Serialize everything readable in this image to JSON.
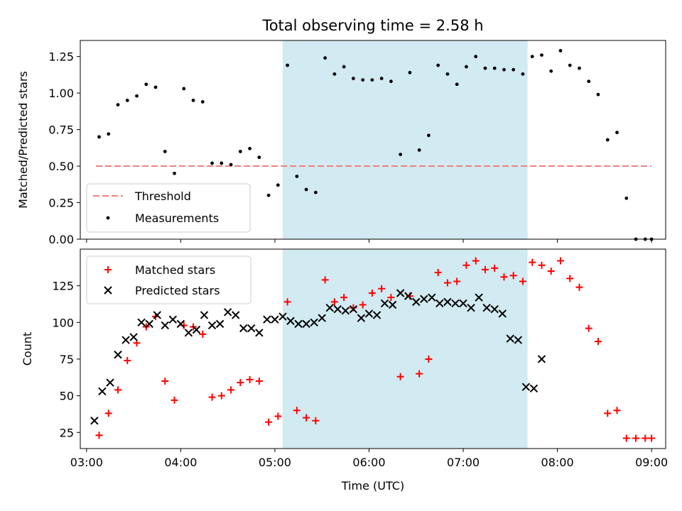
{
  "title": "Total observing time = 2.58 h",
  "xlabel": "Time (UTC)",
  "shaded_interval": {
    "start": "05:05",
    "end": "07:41",
    "color": "#add8e6"
  },
  "colors": {
    "threshold": "#f08080",
    "measurements": "#000000",
    "matched": "#ff0000",
    "predicted": "#000000"
  },
  "chart_data": [
    {
      "type": "scatter",
      "ylabel": "Matched/Predicted stars",
      "xlim": [
        "02:56",
        "09:09"
      ],
      "ylim": [
        0,
        1.36
      ],
      "grid": false,
      "legend_position": "lower-left",
      "x_ticks": [
        "03:00",
        "04:00",
        "05:00",
        "06:00",
        "07:00",
        "08:00",
        "09:00"
      ],
      "show_x_tick_labels": false,
      "y_ticks": [
        0.0,
        0.25,
        0.5,
        0.75,
        1.0,
        1.25
      ],
      "y_tick_labels": [
        "0.00",
        "0.25",
        "0.50",
        "0.75",
        "1.00",
        "1.25"
      ],
      "threshold": {
        "name": "Threshold",
        "value": 0.5,
        "x_start": "03:06",
        "x_end": "09:00"
      },
      "series": [
        {
          "name": "Measurements",
          "x": [
            "03:08",
            "03:14",
            "03:20",
            "03:26",
            "03:32",
            "03:38",
            "03:44",
            "03:50",
            "03:56",
            "04:02",
            "04:08",
            "04:14",
            "04:20",
            "04:26",
            "04:32",
            "04:38",
            "04:44",
            "04:50",
            "04:56",
            "05:02",
            "05:08",
            "05:14",
            "05:20",
            "05:26",
            "05:32",
            "05:38",
            "05:44",
            "05:50",
            "05:56",
            "06:02",
            "06:08",
            "06:14",
            "06:20",
            "06:26",
            "06:32",
            "06:38",
            "06:44",
            "06:50",
            "06:56",
            "07:02",
            "07:08",
            "07:14",
            "07:20",
            "07:26",
            "07:32",
            "07:38",
            "07:44",
            "07:50",
            "07:56",
            "08:02",
            "08:08",
            "08:14",
            "08:20",
            "08:26",
            "08:32",
            "08:38",
            "08:44",
            "08:50",
            "08:56",
            "09:00"
          ],
          "y": [
            0.7,
            0.72,
            0.92,
            0.95,
            0.98,
            1.06,
            1.04,
            0.6,
            0.45,
            1.03,
            0.95,
            0.94,
            0.52,
            0.52,
            0.51,
            0.6,
            0.62,
            0.56,
            0.3,
            0.37,
            1.19,
            0.43,
            0.34,
            0.32,
            1.24,
            1.13,
            1.18,
            1.1,
            1.09,
            1.09,
            1.1,
            1.08,
            0.58,
            1.14,
            0.61,
            0.71,
            1.19,
            1.13,
            1.06,
            1.18,
            1.25,
            1.17,
            1.17,
            1.16,
            1.16,
            1.13,
            1.25,
            1.26,
            1.15,
            1.29,
            1.19,
            1.17,
            1.08,
            0.99,
            0.68,
            0.73,
            0.28,
            0.0,
            0.0,
            0.0
          ]
        }
      ]
    },
    {
      "type": "scatter",
      "ylabel": "Count",
      "xlabel": "Time (UTC)",
      "xlim": [
        "02:56",
        "09:09"
      ],
      "ylim": [
        14,
        150
      ],
      "grid": false,
      "legend_position": "upper-left",
      "x_ticks": [
        "03:00",
        "04:00",
        "05:00",
        "06:00",
        "07:00",
        "08:00",
        "09:00"
      ],
      "show_x_tick_labels": true,
      "y_ticks": [
        25,
        50,
        75,
        100,
        125
      ],
      "y_tick_labels": [
        "25",
        "50",
        "75",
        "100",
        "125"
      ],
      "series": [
        {
          "name": "Matched stars",
          "marker": "plus",
          "x": [
            "03:08",
            "03:14",
            "03:20",
            "03:26",
            "03:32",
            "03:38",
            "03:44",
            "03:50",
            "03:56",
            "04:02",
            "04:08",
            "04:14",
            "04:20",
            "04:26",
            "04:32",
            "04:38",
            "04:44",
            "04:50",
            "04:56",
            "05:02",
            "05:08",
            "05:14",
            "05:20",
            "05:26",
            "05:32",
            "05:38",
            "05:44",
            "05:50",
            "05:56",
            "06:02",
            "06:08",
            "06:14",
            "06:20",
            "06:26",
            "06:32",
            "06:38",
            "06:44",
            "06:50",
            "06:56",
            "07:02",
            "07:08",
            "07:14",
            "07:20",
            "07:26",
            "07:32",
            "07:38",
            "07:44",
            "07:50",
            "07:56",
            "08:02",
            "08:08",
            "08:14",
            "08:20",
            "08:26",
            "08:32",
            "08:38",
            "08:44",
            "08:50",
            "08:56",
            "09:00"
          ],
          "y": [
            23,
            38,
            54,
            74,
            86,
            97,
            104,
            60,
            47,
            98,
            97,
            92,
            49,
            50,
            54,
            59,
            61,
            60,
            32,
            36,
            114,
            40,
            35,
            33,
            129,
            114,
            117,
            110,
            112,
            120,
            123,
            117,
            63,
            118,
            65,
            75,
            134,
            127,
            128,
            139,
            142,
            136,
            137,
            131,
            132,
            128,
            141,
            139,
            135,
            142,
            130,
            124,
            96,
            87,
            38,
            40,
            21,
            21,
            21,
            21
          ]
        },
        {
          "name": "Predicted stars",
          "marker": "x",
          "x": [
            "03:05",
            "03:10",
            "03:15",
            "03:20",
            "03:25",
            "03:30",
            "03:35",
            "03:40",
            "03:45",
            "03:50",
            "03:55",
            "04:00",
            "04:05",
            "04:10",
            "04:15",
            "04:20",
            "04:25",
            "04:30",
            "04:35",
            "04:40",
            "04:45",
            "04:50",
            "04:55",
            "05:00",
            "05:05",
            "05:10",
            "05:15",
            "05:20",
            "05:25",
            "05:30",
            "05:35",
            "05:40",
            "05:45",
            "05:50",
            "05:55",
            "06:00",
            "06:05",
            "06:10",
            "06:15",
            "06:20",
            "06:25",
            "06:30",
            "06:35",
            "06:40",
            "06:45",
            "06:50",
            "06:55",
            "07:00",
            "07:05",
            "07:10",
            "07:15",
            "07:20",
            "07:25",
            "07:30",
            "07:35",
            "07:40",
            "07:45",
            "07:50"
          ],
          "y": [
            33,
            53,
            59,
            78,
            88,
            90,
            100,
            99,
            105,
            98,
            102,
            99,
            93,
            95,
            105,
            98,
            99,
            107,
            105,
            96,
            96,
            93,
            102,
            102,
            104,
            101,
            99,
            99,
            100,
            103,
            110,
            109,
            108,
            109,
            103,
            106,
            105,
            113,
            112,
            120,
            118,
            114,
            116,
            117,
            113,
            114,
            113,
            113,
            110,
            117,
            110,
            109,
            106,
            89,
            88,
            56,
            55,
            75
          ]
        }
      ]
    }
  ]
}
